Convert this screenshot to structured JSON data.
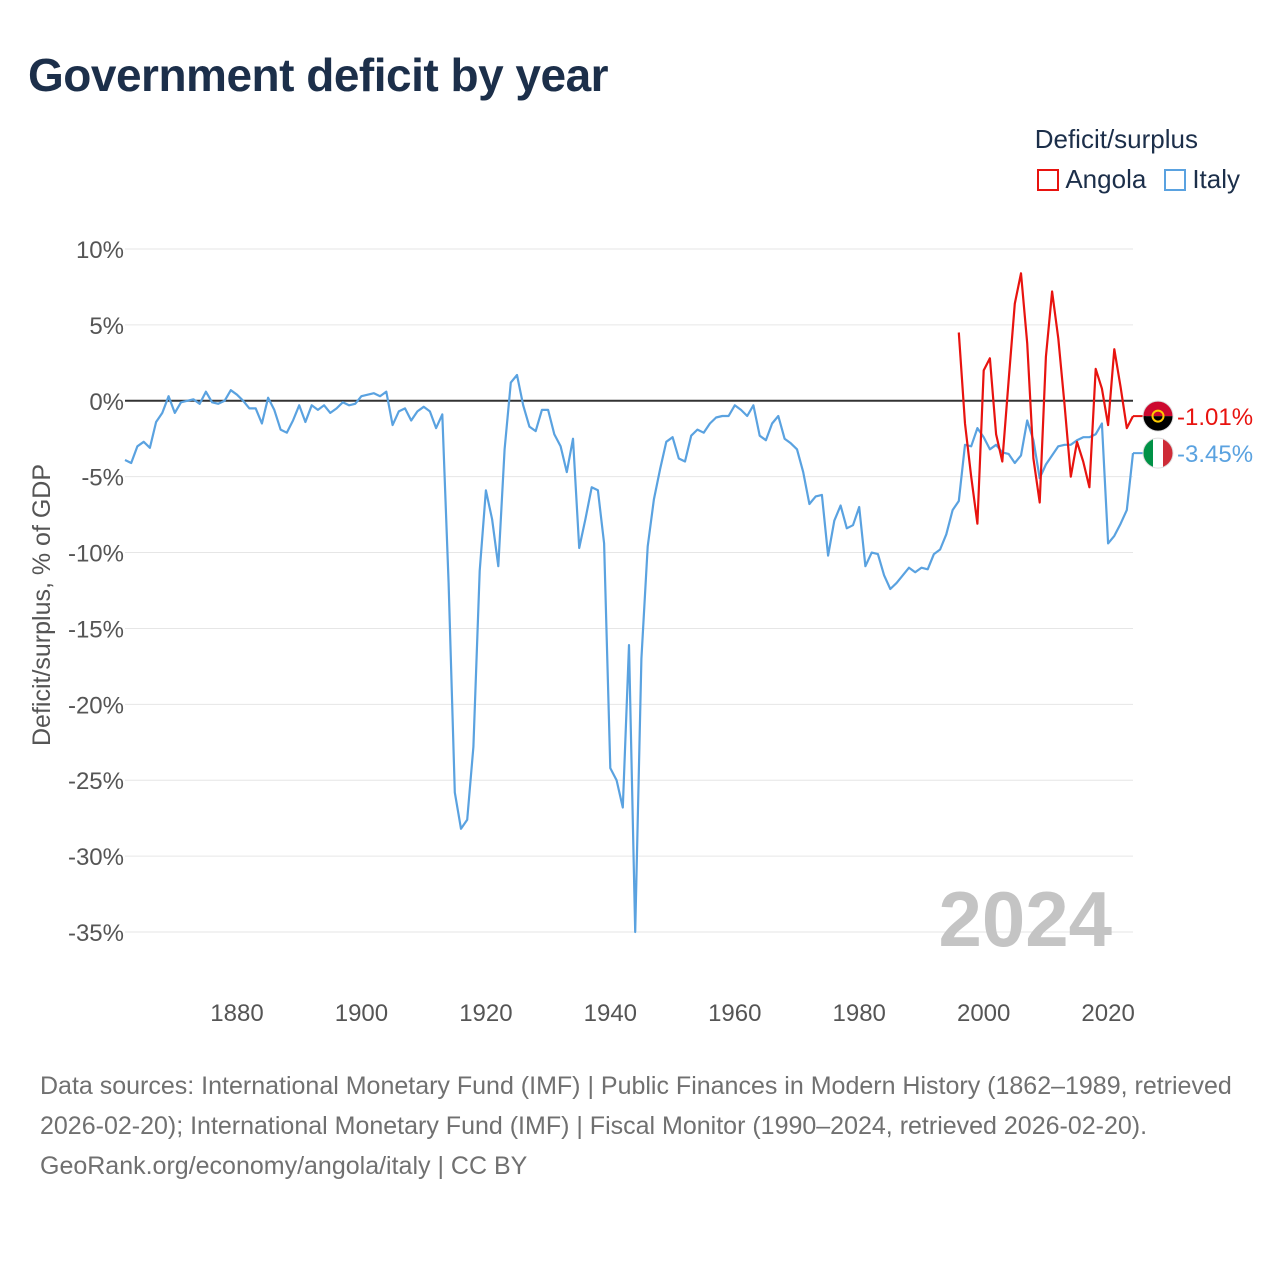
{
  "title": "Government deficit by year",
  "legend": {
    "title": "Deficit/surplus",
    "items": [
      {
        "label": "Angola",
        "color": "#e8130f"
      },
      {
        "label": "Italy",
        "color": "#5aa2e0"
      }
    ]
  },
  "year_watermark": "2024",
  "footer": {
    "sources": "Data sources: International Monetary Fund (IMF) | Public Finances in Modern History (1862–1989, retrieved 2026-02-20); International Monetary Fund (IMF) | Fiscal Monitor (1990–2024, retrieved 2026-02-20).",
    "credit": "GeoRank.org/economy/angola/italy | CC BY"
  },
  "chart_data": {
    "type": "line",
    "title": "Government deficit by year",
    "xlabel": "",
    "ylabel": "Deficit/surplus, % of GDP",
    "xlim": [
      1862,
      2024
    ],
    "ylim": [
      -35,
      10
    ],
    "x_ticks": [
      1880,
      1900,
      1920,
      1940,
      1960,
      1980,
      2000,
      2020
    ],
    "y_ticks": [
      10,
      5,
      0,
      -5,
      -10,
      -15,
      -20,
      -25,
      -30,
      -35
    ],
    "y_tick_labels": [
      "10%",
      "5%",
      "0%",
      "-5%",
      "-10%",
      "-15%",
      "-20%",
      "-25%",
      "-30%",
      "-35%"
    ],
    "series": [
      {
        "name": "Italy",
        "color": "#5aa2e0",
        "end_label": "-3.45%",
        "points": [
          [
            1862,
            -3.9
          ],
          [
            1863,
            -4.1
          ],
          [
            1864,
            -3.0
          ],
          [
            1865,
            -2.7
          ],
          [
            1866,
            -3.1
          ],
          [
            1867,
            -1.4
          ],
          [
            1868,
            -0.8
          ],
          [
            1869,
            0.3
          ],
          [
            1870,
            -0.8
          ],
          [
            1871,
            -0.1
          ],
          [
            1872,
            0.0
          ],
          [
            1873,
            0.1
          ],
          [
            1874,
            -0.2
          ],
          [
            1875,
            0.6
          ],
          [
            1876,
            -0.1
          ],
          [
            1877,
            -0.2
          ],
          [
            1878,
            0.0
          ],
          [
            1879,
            0.7
          ],
          [
            1880,
            0.4
          ],
          [
            1881,
            0.0
          ],
          [
            1882,
            -0.5
          ],
          [
            1883,
            -0.5
          ],
          [
            1884,
            -1.5
          ],
          [
            1885,
            0.2
          ],
          [
            1886,
            -0.6
          ],
          [
            1887,
            -1.9
          ],
          [
            1888,
            -2.1
          ],
          [
            1889,
            -1.3
          ],
          [
            1890,
            -0.3
          ],
          [
            1891,
            -1.4
          ],
          [
            1892,
            -0.3
          ],
          [
            1893,
            -0.6
          ],
          [
            1894,
            -0.3
          ],
          [
            1895,
            -0.8
          ],
          [
            1896,
            -0.5
          ],
          [
            1897,
            -0.1
          ],
          [
            1898,
            -0.3
          ],
          [
            1899,
            -0.2
          ],
          [
            1900,
            0.3
          ],
          [
            1901,
            0.4
          ],
          [
            1902,
            0.5
          ],
          [
            1903,
            0.3
          ],
          [
            1904,
            0.6
          ],
          [
            1905,
            -1.6
          ],
          [
            1906,
            -0.7
          ],
          [
            1907,
            -0.5
          ],
          [
            1908,
            -1.3
          ],
          [
            1909,
            -0.7
          ],
          [
            1910,
            -0.4
          ],
          [
            1911,
            -0.7
          ],
          [
            1912,
            -1.8
          ],
          [
            1913,
            -0.9
          ],
          [
            1914,
            -12.0
          ],
          [
            1915,
            -25.8
          ],
          [
            1916,
            -28.2
          ],
          [
            1917,
            -27.6
          ],
          [
            1918,
            -22.8
          ],
          [
            1919,
            -11.2
          ],
          [
            1920,
            -5.9
          ],
          [
            1921,
            -7.8
          ],
          [
            1922,
            -10.9
          ],
          [
            1923,
            -3.2
          ],
          [
            1924,
            1.2
          ],
          [
            1925,
            1.7
          ],
          [
            1926,
            -0.3
          ],
          [
            1927,
            -1.7
          ],
          [
            1928,
            -2.0
          ],
          [
            1929,
            -0.6
          ],
          [
            1930,
            -0.6
          ],
          [
            1931,
            -2.2
          ],
          [
            1932,
            -3.0
          ],
          [
            1933,
            -4.7
          ],
          [
            1934,
            -2.5
          ],
          [
            1935,
            -9.7
          ],
          [
            1936,
            -7.8
          ],
          [
            1937,
            -5.7
          ],
          [
            1938,
            -5.9
          ],
          [
            1939,
            -9.4
          ],
          [
            1940,
            -24.2
          ],
          [
            1941,
            -25.0
          ],
          [
            1942,
            -26.8
          ],
          [
            1943,
            -16.1
          ],
          [
            1944,
            -35.0
          ],
          [
            1945,
            -17.0
          ],
          [
            1946,
            -9.6
          ],
          [
            1947,
            -6.5
          ],
          [
            1948,
            -4.5
          ],
          [
            1949,
            -2.7
          ],
          [
            1950,
            -2.4
          ],
          [
            1951,
            -3.8
          ],
          [
            1952,
            -4.0
          ],
          [
            1953,
            -2.3
          ],
          [
            1954,
            -1.9
          ],
          [
            1955,
            -2.1
          ],
          [
            1956,
            -1.5
          ],
          [
            1957,
            -1.1
          ],
          [
            1958,
            -1.0
          ],
          [
            1959,
            -1.0
          ],
          [
            1960,
            -0.3
          ],
          [
            1961,
            -0.6
          ],
          [
            1962,
            -1.0
          ],
          [
            1963,
            -0.3
          ],
          [
            1964,
            -2.3
          ],
          [
            1965,
            -2.6
          ],
          [
            1966,
            -1.5
          ],
          [
            1967,
            -1.0
          ],
          [
            1968,
            -2.5
          ],
          [
            1969,
            -2.8
          ],
          [
            1970,
            -3.2
          ],
          [
            1971,
            -4.7
          ],
          [
            1972,
            -6.8
          ],
          [
            1973,
            -6.3
          ],
          [
            1974,
            -6.2
          ],
          [
            1975,
            -10.2
          ],
          [
            1976,
            -7.9
          ],
          [
            1977,
            -6.9
          ],
          [
            1978,
            -8.4
          ],
          [
            1979,
            -8.2
          ],
          [
            1980,
            -7.0
          ],
          [
            1981,
            -10.9
          ],
          [
            1982,
            -10.0
          ],
          [
            1983,
            -10.1
          ],
          [
            1984,
            -11.5
          ],
          [
            1985,
            -12.4
          ],
          [
            1986,
            -12.0
          ],
          [
            1987,
            -11.5
          ],
          [
            1988,
            -11.0
          ],
          [
            1989,
            -11.3
          ],
          [
            1990,
            -11.0
          ],
          [
            1991,
            -11.1
          ],
          [
            1992,
            -10.1
          ],
          [
            1993,
            -9.8
          ],
          [
            1994,
            -8.8
          ],
          [
            1995,
            -7.2
          ],
          [
            1996,
            -6.6
          ],
          [
            1997,
            -2.9
          ],
          [
            1998,
            -3.0
          ],
          [
            1999,
            -1.8
          ],
          [
            2000,
            -2.4
          ],
          [
            2001,
            -3.2
          ],
          [
            2002,
            -2.9
          ],
          [
            2003,
            -3.4
          ],
          [
            2004,
            -3.5
          ],
          [
            2005,
            -4.1
          ],
          [
            2006,
            -3.6
          ],
          [
            2007,
            -1.3
          ],
          [
            2008,
            -2.6
          ],
          [
            2009,
            -5.1
          ],
          [
            2010,
            -4.2
          ],
          [
            2011,
            -3.6
          ],
          [
            2012,
            -3.0
          ],
          [
            2013,
            -2.9
          ],
          [
            2014,
            -2.9
          ],
          [
            2015,
            -2.6
          ],
          [
            2016,
            -2.4
          ],
          [
            2017,
            -2.4
          ],
          [
            2018,
            -2.2
          ],
          [
            2019,
            -1.5
          ],
          [
            2020,
            -9.4
          ],
          [
            2021,
            -8.9
          ],
          [
            2022,
            -8.1
          ],
          [
            2023,
            -7.2
          ],
          [
            2024,
            -3.45
          ]
        ]
      },
      {
        "name": "Angola",
        "color": "#e8130f",
        "end_label": "-1.01%",
        "points": [
          [
            1996,
            4.5
          ],
          [
            1997,
            -1.5
          ],
          [
            1998,
            -5.0
          ],
          [
            1999,
            -8.1
          ],
          [
            2000,
            2.0
          ],
          [
            2001,
            2.8
          ],
          [
            2002,
            -2.2
          ],
          [
            2003,
            -4.0
          ],
          [
            2004,
            1.3
          ],
          [
            2005,
            6.4
          ],
          [
            2006,
            8.4
          ],
          [
            2007,
            3.8
          ],
          [
            2008,
            -3.8
          ],
          [
            2009,
            -6.7
          ],
          [
            2010,
            2.9
          ],
          [
            2011,
            7.2
          ],
          [
            2012,
            4.1
          ],
          [
            2013,
            -0.3
          ],
          [
            2014,
            -5.0
          ],
          [
            2015,
            -2.7
          ],
          [
            2016,
            -4.0
          ],
          [
            2017,
            -5.7
          ],
          [
            2018,
            2.1
          ],
          [
            2019,
            0.8
          ],
          [
            2020,
            -1.6
          ],
          [
            2021,
            3.4
          ],
          [
            2022,
            0.9
          ],
          [
            2023,
            -1.8
          ],
          [
            2024,
            -1.01
          ]
        ]
      }
    ]
  }
}
